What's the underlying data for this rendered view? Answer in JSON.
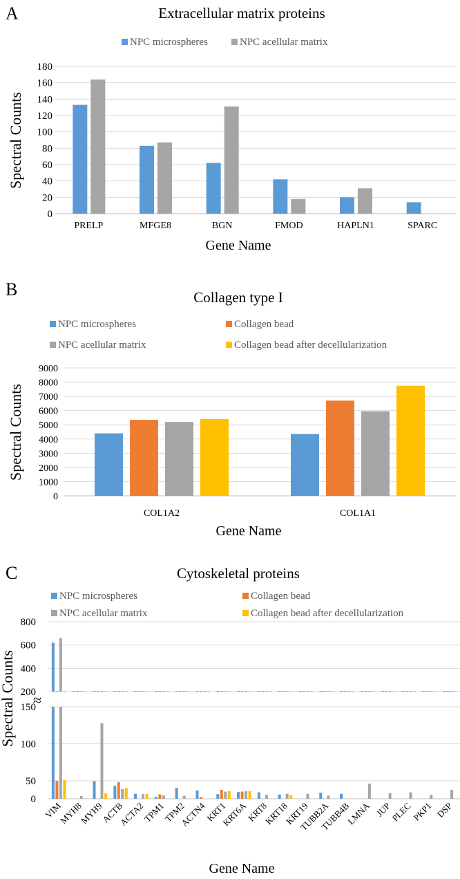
{
  "colors": {
    "NPC microspheres": "#5b9bd5",
    "Collagen bead": "#ed7d31",
    "NPC acellular matrix": "#a5a5a5",
    "Collagen bead after decellularization": "#ffc000"
  },
  "chart_data": [
    {
      "panel": "A",
      "type": "bar",
      "title": "Extracellular matrix proteins",
      "xlabel": "Gene Name",
      "ylabel": "Spectral Counts",
      "ylim": [
        0,
        180
      ],
      "yticks": [
        0,
        20,
        40,
        60,
        80,
        100,
        120,
        140,
        160,
        180
      ],
      "grid": true,
      "legend": "top",
      "categories": [
        "PRELP",
        "MFGE8",
        "BGN",
        "FMOD",
        "HAPLN1",
        "SPARC"
      ],
      "series": [
        {
          "name": "NPC microspheres",
          "values": [
            133,
            83,
            62,
            42,
            20,
            14
          ]
        },
        {
          "name": "NPC acellular matrix",
          "values": [
            164,
            87,
            131,
            18,
            31,
            0
          ]
        }
      ]
    },
    {
      "panel": "B",
      "type": "bar",
      "title": "Collagen type I",
      "xlabel": "Gene Name",
      "ylabel": "Spectral Counts",
      "ylim": [
        0,
        9000
      ],
      "yticks": [
        0,
        1000,
        2000,
        3000,
        4000,
        5000,
        6000,
        7000,
        8000,
        9000
      ],
      "grid": true,
      "legend": "top",
      "categories": [
        "COL1A2",
        "COL1A1"
      ],
      "series": [
        {
          "name": "NPC microspheres",
          "values": [
            4400,
            4350
          ]
        },
        {
          "name": "Collagen bead",
          "values": [
            5350,
            6700
          ]
        },
        {
          "name": "NPC acellular matrix",
          "values": [
            5200,
            5950
          ]
        },
        {
          "name": "Collagen bead after decellularization",
          "values": [
            5400,
            7750
          ]
        }
      ]
    },
    {
      "panel": "C",
      "type": "bar",
      "title": "Cytoskeletal proteins",
      "xlabel": "Gene Name",
      "ylabel": "Spectral Counts",
      "ylim": [
        0,
        800
      ],
      "axis_break": [
        150,
        200
      ],
      "yticks_upper": [
        200,
        400,
        600,
        800
      ],
      "yticks_lower": [
        0,
        50,
        100,
        150
      ],
      "grid": true,
      "legend": "top",
      "categories": [
        "VIM",
        "MYH8",
        "MYH9",
        "ACTB",
        "ACTA2",
        "TPM1",
        "TPM2",
        "ACTN4",
        "KRT1",
        "KRT6A",
        "KRT8",
        "KRT18",
        "KRT19",
        "TUBB2A",
        "TUBB4B",
        "LMNA",
        "JUP",
        "PLEC",
        "PKP1",
        "DSP"
      ],
      "series": [
        {
          "name": "NPC microspheres",
          "values": [
            620,
            0,
            49,
            36,
            14,
            5,
            30,
            23,
            13,
            19,
            18,
            12,
            0,
            17,
            14,
            0,
            0,
            0,
            0,
            0
          ]
        },
        {
          "name": "Collagen bead",
          "values": [
            50,
            0,
            0,
            46,
            0,
            12,
            0,
            5,
            25,
            20,
            0,
            0,
            0,
            0,
            0,
            0,
            0,
            0,
            0,
            0
          ]
        },
        {
          "name": "NPC acellular matrix",
          "values": [
            660,
            8,
            128,
            27,
            13,
            9,
            8,
            0,
            20,
            21,
            11,
            14,
            14,
            9,
            0,
            42,
            16,
            18,
            11,
            25
          ]
        },
        {
          "name": "Collagen bead after decellularization",
          "values": [
            51,
            0,
            15,
            30,
            14,
            0,
            0,
            0,
            21,
            21,
            0,
            10,
            0,
            0,
            0,
            0,
            0,
            0,
            0,
            0
          ]
        }
      ]
    }
  ]
}
